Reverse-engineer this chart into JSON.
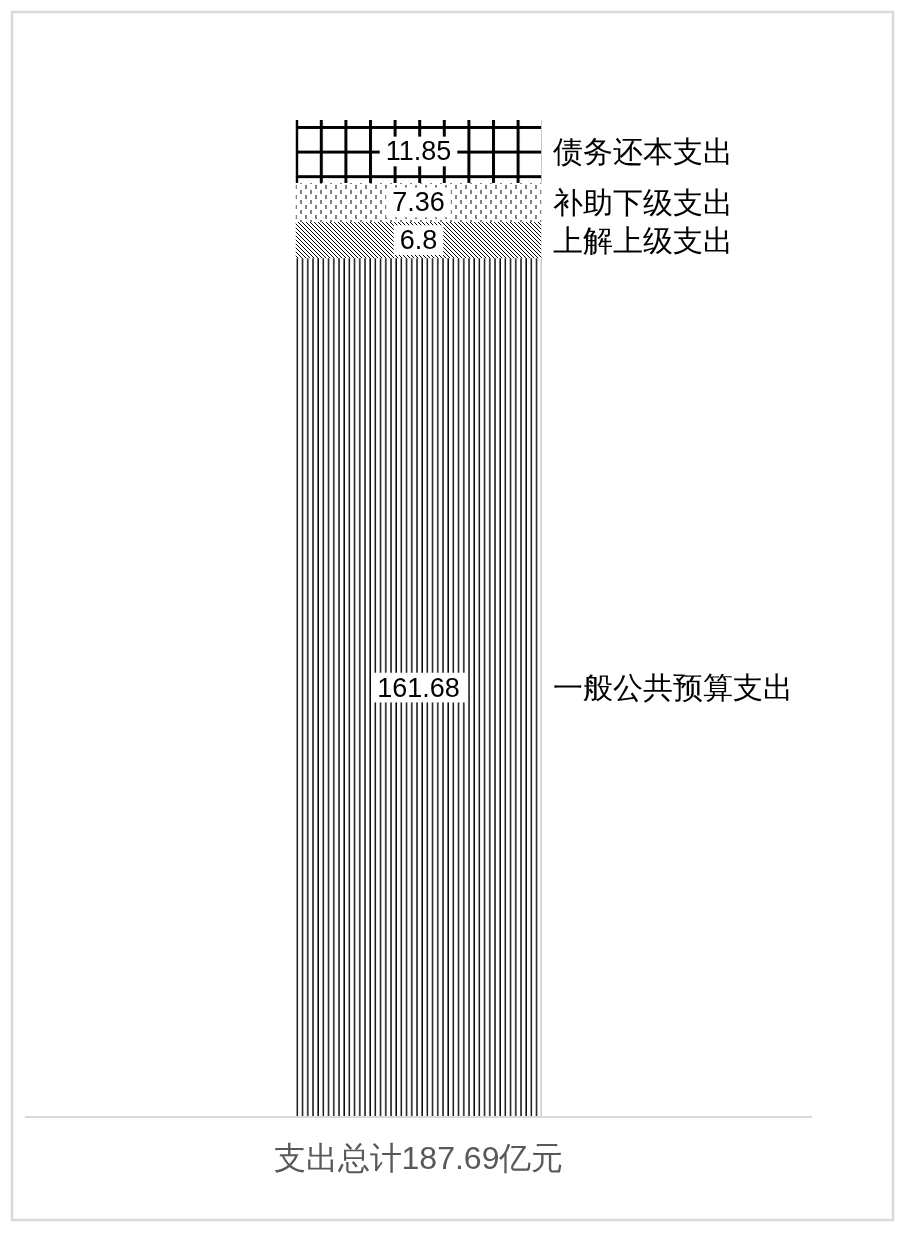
{
  "chart_data": {
    "type": "bar",
    "categories": [
      "支出总计187.69亿元"
    ],
    "stacked": true,
    "data_labels": true,
    "tick_labels": "x",
    "series": [
      {
        "name": "一般公共预算支出",
        "color": "#000000",
        "values": [
          161.68
        ]
      },
      {
        "name": "上解上级支出",
        "color": "#000000",
        "values": [
          6.8
        ]
      },
      {
        "name": "补助下级支出",
        "color": "#000000",
        "values": [
          7.36
        ]
      },
      {
        "name": "债务还本支出",
        "color": "#000000",
        "values": [
          11.85
        ]
      }
    ]
  }
}
